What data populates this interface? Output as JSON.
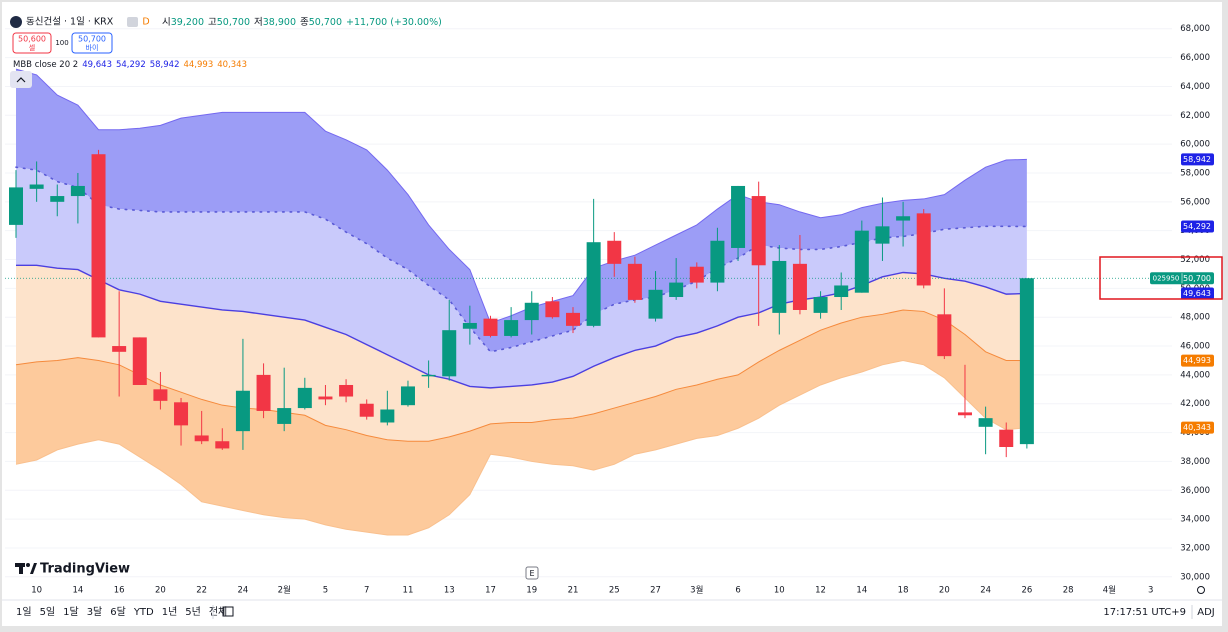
{
  "chart_data": {
    "type": "candlestick",
    "header": {
      "symbol": "동신건설 · 1일 · KRX",
      "interval_badge": "D",
      "ohlc_names": [
        "시",
        "고",
        "저",
        "종"
      ],
      "ohlc_values": [
        "39,200",
        "50,700",
        "38,900",
        "50,700"
      ],
      "change": "+11,700 (+30.00%)"
    },
    "trade": {
      "sell_price": "50,600",
      "sell": "셀",
      "spread": "100",
      "buy_price": "50,700",
      "buy": "바이"
    },
    "indicator": "MBB close 20 2",
    "watermark": "TradingView",
    "event_marker": "E",
    "ticker": "025950",
    "last_label": "50,700",
    "categories": [
      null,
      "10",
      null,
      "14",
      null,
      "16",
      null,
      "20",
      null,
      "22",
      null,
      "24",
      null,
      "2월",
      null,
      "5",
      null,
      "7",
      null,
      "11",
      null,
      "13",
      null,
      "17",
      null,
      "19",
      null,
      "21",
      null,
      "25",
      null,
      "27",
      null,
      "3월",
      null,
      "6",
      null,
      "10",
      null,
      "12",
      null,
      "14",
      null,
      "18",
      null,
      "20",
      null,
      "24",
      null,
      "26",
      null,
      "28",
      null,
      "4월",
      null,
      "3"
    ],
    "open": [
      54400,
      56900,
      56000,
      56400,
      59300,
      46000,
      46600,
      43000,
      42100,
      39800,
      39400,
      40100,
      44000,
      40600,
      41700,
      42500,
      43300,
      42000,
      40700,
      41900,
      43900,
      43900,
      47200,
      47900,
      46700,
      47800,
      49100,
      48300,
      47400,
      53300,
      51700,
      47900,
      49400,
      51500,
      50400,
      52800,
      56400,
      48300,
      51700,
      48300,
      49400,
      49700,
      53100,
      54700,
      55200,
      48200,
      41400,
      40400,
      40200,
      39200,
      null,
      null,
      null,
      null,
      null,
      null
    ],
    "high": [
      58200,
      58800,
      57200,
      58000,
      59600,
      49800,
      46600,
      44200,
      42400,
      41500,
      40300,
      46500,
      44800,
      44500,
      43800,
      43300,
      43700,
      42300,
      42900,
      43600,
      45000,
      49200,
      48800,
      48100,
      48700,
      49800,
      49400,
      48700,
      56200,
      53900,
      52200,
      51200,
      52100,
      51800,
      54200,
      57100,
      57400,
      53000,
      53700,
      49800,
      51100,
      54700,
      56300,
      56000,
      55500,
      50000,
      44700,
      41800,
      40700,
      50700,
      null,
      null,
      null,
      null,
      null,
      null
    ],
    "low": [
      53500,
      56000,
      55000,
      54500,
      46600,
      42500,
      43300,
      41600,
      39100,
      39200,
      38800,
      38800,
      41000,
      40100,
      41600,
      41900,
      42100,
      40900,
      40500,
      41800,
      43100,
      43600,
      46100,
      46600,
      46600,
      46800,
      47900,
      46900,
      47300,
      50800,
      49000,
      47700,
      49200,
      50000,
      49800,
      51900,
      47400,
      46800,
      48200,
      47900,
      48500,
      49700,
      51900,
      52900,
      50000,
      45100,
      41000,
      38500,
      38300,
      38900,
      null,
      null,
      null,
      null,
      null,
      null
    ],
    "close": [
      57000,
      57200,
      56400,
      57100,
      46600,
      45600,
      43300,
      42200,
      40500,
      39400,
      38900,
      42900,
      41500,
      41700,
      43100,
      42300,
      42500,
      41100,
      41600,
      43200,
      44000,
      47100,
      47600,
      46700,
      47800,
      49000,
      48000,
      47400,
      53200,
      51700,
      49200,
      49900,
      50400,
      50400,
      53300,
      57100,
      51600,
      51900,
      48500,
      49400,
      50200,
      54000,
      54300,
      55000,
      50200,
      45300,
      41200,
      41000,
      39000,
      50700,
      null,
      null,
      null,
      null,
      null,
      null
    ],
    "up_color": "#089981",
    "down_color": "#f23645",
    "bands": [
      {
        "color": "#4b3fe0",
        "label_color": "#1e22e6",
        "value_label": "49,643",
        "values": [
          51600,
          51600,
          51400,
          51300,
          50600,
          49900,
          49600,
          49100,
          48900,
          48700,
          48500,
          48400,
          48200,
          48000,
          47800,
          47300,
          46800,
          46100,
          45400,
          44700,
          44000,
          43700,
          43200,
          43100,
          43200,
          43300,
          43500,
          43900,
          44600,
          45200,
          45700,
          46000,
          46600,
          46900,
          47400,
          48000,
          48300,
          48900,
          49200,
          49400,
          49700,
          50200,
          50800,
          51100,
          51000,
          50700,
          50500,
          50100,
          49600,
          49643,
          null,
          null,
          null,
          null,
          null,
          null
        ]
      },
      {
        "color": "#5a5ad6",
        "label_color": "#1e22e6",
        "value_label": "54,292",
        "values": [
          58400,
          58200,
          57400,
          57000,
          55800,
          55500,
          55400,
          55300,
          55300,
          55300,
          55300,
          55300,
          55300,
          55300,
          55300,
          54800,
          53900,
          53100,
          52100,
          51300,
          50200,
          49200,
          47300,
          45600,
          45900,
          46300,
          46700,
          47100,
          48200,
          48900,
          49200,
          49400,
          49900,
          50500,
          51400,
          52100,
          53000,
          52800,
          52700,
          52700,
          52900,
          53200,
          53500,
          53600,
          53800,
          54100,
          54200,
          54300,
          54300,
          54292,
          null,
          null,
          null,
          null,
          null,
          null
        ]
      },
      {
        "color": "#7468f0",
        "label_color": "#1e22e6",
        "value_label": "58,942",
        "values": [
          65200,
          64800,
          63400,
          62700,
          61000,
          61000,
          61100,
          61300,
          61800,
          62000,
          62200,
          62200,
          62200,
          62200,
          62200,
          60900,
          60300,
          59600,
          58200,
          56500,
          54400,
          52700,
          51300,
          47600,
          48100,
          48700,
          49100,
          49500,
          51400,
          51900,
          52300,
          53000,
          53700,
          54400,
          55500,
          56500,
          56000,
          55800,
          55300,
          54900,
          55100,
          55600,
          55900,
          56100,
          56200,
          56500,
          57500,
          58400,
          58900,
          58942,
          null,
          null,
          null,
          null,
          null,
          null
        ]
      },
      {
        "color": "#f58a3c",
        "label_color": "#f57c00",
        "value_label": "44,993",
        "values": [
          44700,
          44900,
          45000,
          45200,
          45000,
          44700,
          44000,
          43300,
          42800,
          42300,
          41900,
          41700,
          41600,
          41400,
          41200,
          40500,
          40200,
          39800,
          39500,
          39400,
          39400,
          39700,
          40100,
          40600,
          40700,
          40700,
          40900,
          41000,
          41300,
          41700,
          42100,
          42500,
          43000,
          43300,
          43700,
          44000,
          44900,
          45700,
          46400,
          47100,
          47600,
          48000,
          48200,
          48500,
          48400,
          47800,
          46800,
          45600,
          45000,
          44993,
          null,
          null,
          null,
          null,
          null,
          null
        ]
      },
      {
        "color": "#f9c08e",
        "label_color": "#f57c00",
        "value_label": "40,343",
        "values": [
          37800,
          38100,
          38800,
          39200,
          39500,
          39200,
          38300,
          37400,
          36400,
          35200,
          34900,
          34600,
          34300,
          34100,
          34000,
          33600,
          33300,
          33100,
          32900,
          32900,
          33400,
          34300,
          35700,
          38500,
          38300,
          38000,
          37800,
          37700,
          37400,
          37800,
          38500,
          38800,
          39200,
          39600,
          39800,
          40300,
          41000,
          41900,
          42600,
          43300,
          43800,
          44200,
          44700,
          45000,
          44700,
          43800,
          42400,
          41000,
          40200,
          40343,
          null,
          null,
          null,
          null,
          null,
          null
        ]
      }
    ],
    "fills": [
      "#9c9df6",
      "#c9cafb",
      "#fde3cb",
      "#fdca9c"
    ],
    "ylim": [
      28600,
      69300
    ],
    "yticks": [
      {
        "value": 30000,
        "label": "30,000"
      },
      {
        "value": 32000,
        "label": "32,000"
      },
      {
        "value": 34000,
        "label": "34,000"
      },
      {
        "value": 36000,
        "label": "36,000"
      },
      {
        "value": 38000,
        "label": "38,000"
      },
      {
        "value": 40000,
        "label": "40,000"
      },
      {
        "value": 42000,
        "label": "42,000"
      },
      {
        "value": 44000,
        "label": "44,000"
      },
      {
        "value": 46000,
        "label": "46,000"
      },
      {
        "value": 48000,
        "label": "48,000"
      },
      {
        "value": 50000,
        "label": "50,000"
      },
      {
        "value": 52000,
        "label": "52,000"
      },
      {
        "value": 54000,
        "label": "54,000"
      },
      {
        "value": 56000,
        "label": "56,000"
      },
      {
        "value": 58000,
        "label": "58,000"
      },
      {
        "value": 60000,
        "label": "60,000"
      },
      {
        "value": 62000,
        "label": "62,000"
      },
      {
        "value": 64000,
        "label": "64,000"
      },
      {
        "value": 66000,
        "label": "66,000"
      },
      {
        "value": 68000,
        "label": "68,000"
      }
    ],
    "grid": true,
    "toolbar": [
      "1일",
      "5일",
      "1달",
      "3달",
      "6달",
      "YTD",
      "1년",
      "5년",
      "전체"
    ],
    "clock": "17:17:51 UTC+9",
    "adj": "ADJ"
  }
}
